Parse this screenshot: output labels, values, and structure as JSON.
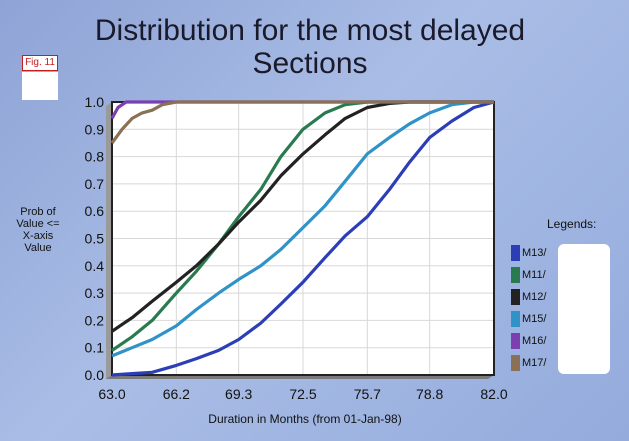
{
  "figure": {
    "fig_label": "Fig. 11"
  },
  "legend_title": "Legends:",
  "chart_data": {
    "type": "line",
    "title": "Distribution for the most delayed Sections",
    "xlabel": "Duration in Months (from 01-Jan-98)",
    "ylabel": "Prob of\nValue  <=\nX-axis\nValue",
    "xlim": [
      63.0,
      82.0
    ],
    "ylim": [
      0.0,
      1.0
    ],
    "x_ticks": [
      "63.0",
      "66.2",
      "69.3",
      "72.5",
      "75.7",
      "78.8",
      "82.0"
    ],
    "y_ticks": [
      "0.0",
      "0.1",
      "0.2",
      "0.3",
      "0.4",
      "0.5",
      "0.6",
      "0.7",
      "0.8",
      "0.9",
      "1.0"
    ],
    "grid": true,
    "legend_position": "right",
    "series": [
      {
        "name": "M13/",
        "color": "#2b3eb8",
        "x": [
          63.0,
          64.0,
          65.0,
          66.2,
          67.2,
          68.3,
          69.3,
          70.4,
          71.4,
          72.5,
          73.6,
          74.6,
          75.7,
          76.8,
          77.8,
          78.8,
          79.9,
          81.0,
          82.0
        ],
        "y": [
          0.0,
          0.005,
          0.01,
          0.035,
          0.06,
          0.09,
          0.13,
          0.19,
          0.26,
          0.34,
          0.43,
          0.51,
          0.58,
          0.68,
          0.78,
          0.87,
          0.93,
          0.98,
          1.0
        ]
      },
      {
        "name": "M11/",
        "color": "#2a7a50",
        "x": [
          63.0,
          64.0,
          65.0,
          66.2,
          67.2,
          68.3,
          69.3,
          70.4,
          71.4,
          72.5,
          73.6,
          74.6,
          75.7
        ],
        "y": [
          0.09,
          0.14,
          0.2,
          0.3,
          0.38,
          0.48,
          0.58,
          0.68,
          0.8,
          0.9,
          0.96,
          0.99,
          1.0
        ]
      },
      {
        "name": "M12/",
        "color": "#222222",
        "x": [
          63.0,
          64.0,
          65.0,
          66.2,
          67.2,
          68.3,
          69.3,
          70.4,
          71.4,
          72.5,
          73.6,
          74.6,
          75.7,
          76.8,
          77.8
        ],
        "y": [
          0.16,
          0.21,
          0.27,
          0.34,
          0.4,
          0.48,
          0.56,
          0.64,
          0.73,
          0.81,
          0.88,
          0.94,
          0.98,
          0.995,
          1.0
        ]
      },
      {
        "name": "M15/",
        "color": "#2f93c8",
        "x": [
          63.0,
          64.0,
          65.0,
          66.2,
          67.2,
          68.3,
          69.3,
          70.4,
          71.4,
          72.5,
          73.6,
          74.6,
          75.7,
          76.8,
          77.8,
          78.8,
          79.9,
          81.0,
          82.0
        ],
        "y": [
          0.07,
          0.1,
          0.13,
          0.18,
          0.24,
          0.3,
          0.35,
          0.4,
          0.46,
          0.54,
          0.62,
          0.71,
          0.81,
          0.87,
          0.92,
          0.96,
          0.99,
          1.0,
          1.0
        ]
      },
      {
        "name": "M16/",
        "color": "#7b3fb0",
        "x": [
          63.0,
          63.3,
          63.7,
          64.0,
          65.0,
          66.2
        ],
        "y": [
          0.94,
          0.98,
          1.0,
          1.0,
          1.0,
          1.0
        ]
      },
      {
        "name": "M17/",
        "color": "#8a7055",
        "x": [
          63.0,
          63.5,
          64.0,
          64.5,
          65.0,
          65.5,
          66.2
        ],
        "y": [
          0.85,
          0.9,
          0.94,
          0.96,
          0.97,
          0.99,
          1.0
        ]
      }
    ]
  }
}
